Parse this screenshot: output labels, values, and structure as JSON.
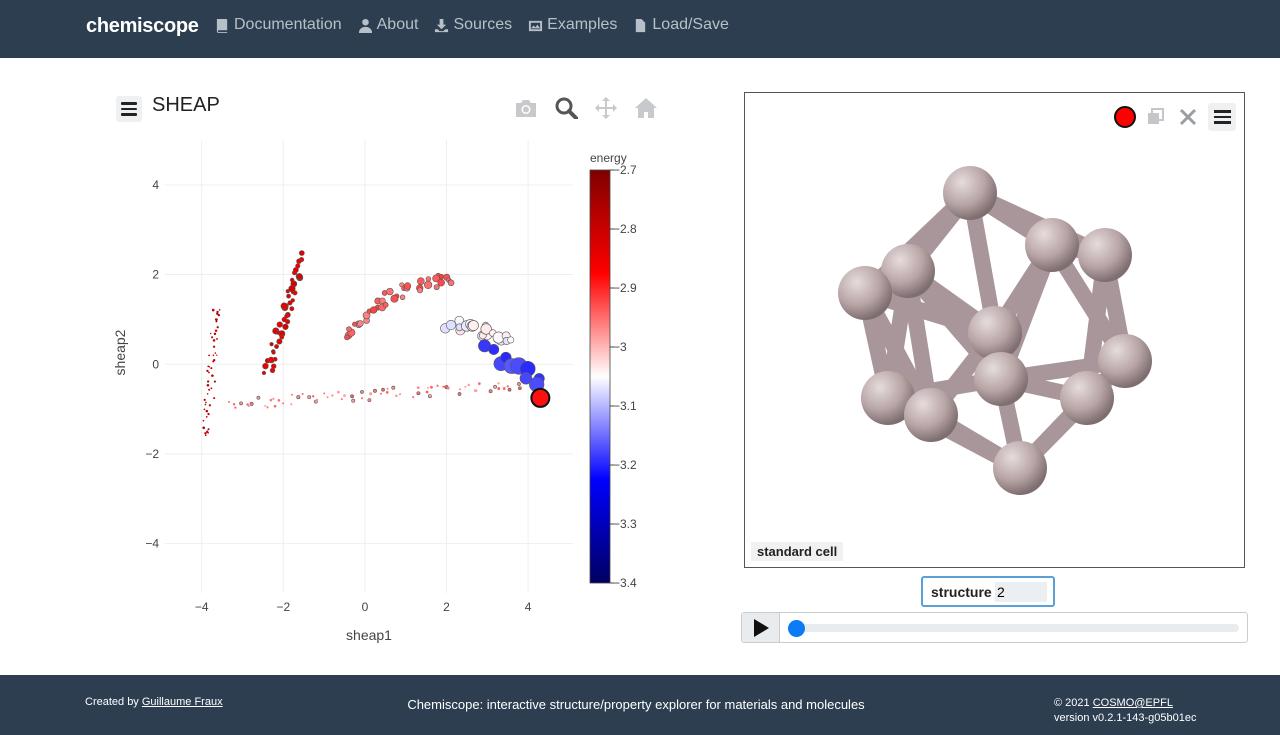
{
  "nav": {
    "brand": "chemiscope",
    "links": [
      {
        "label": "Documentation",
        "icon": "book-icon"
      },
      {
        "label": "About",
        "icon": "user-icon"
      },
      {
        "label": "Sources",
        "icon": "download-icon"
      },
      {
        "label": "Examples",
        "icon": "images-icon"
      },
      {
        "label": "Load/Save",
        "icon": "file-icon"
      }
    ]
  },
  "map": {
    "title": "SHEAP",
    "toolbar": [
      "camera-icon",
      "zoom-icon",
      "pan-icon",
      "home-icon"
    ],
    "selected_marker_color": "#ff1010"
  },
  "chart_data": {
    "type": "scatter",
    "xlabel": "sheap1",
    "ylabel": "sheap2",
    "xlim": [
      -4.9,
      5.1
    ],
    "ylim": [
      -5.1,
      5.0
    ],
    "xticks": [
      -4,
      -2,
      0,
      2,
      4
    ],
    "yticks": [
      -4,
      -2,
      0,
      2,
      4
    ],
    "xtick_labels": [
      "−4",
      "−2",
      "0",
      "2",
      "4"
    ],
    "ytick_labels": [
      "−4",
      "−2",
      "0",
      "2",
      "4"
    ],
    "grid": true,
    "colorbar": {
      "title": "energy",
      "range": [
        -3.4,
        -2.7
      ],
      "ticks": [
        -2.7,
        -2.8,
        -2.9,
        -3.0,
        -3.1,
        -3.2,
        -3.3,
        -3.4
      ],
      "tick_labels": [
        "−2.7",
        "−2.8",
        "−2.9",
        "−3",
        "−3.1",
        "−3.2",
        "−3.3",
        "−3.4"
      ],
      "colormap": [
        "#000060",
        "#0000ff",
        "#ffffff",
        "#ff0000",
        "#800000"
      ]
    },
    "selected_point": {
      "x": 4.3,
      "y": -0.75,
      "energy": -2.9
    },
    "clusters": [
      {
        "name": "far-left band",
        "x_from": -3.9,
        "y_from": -1.6,
        "x_to": -3.6,
        "y_to": 1.3,
        "energy": -2.78,
        "count": 50,
        "size": 1.0
      },
      {
        "name": "left band",
        "x_from": -2.4,
        "y_from": -0.2,
        "x_to": -1.5,
        "y_to": 2.4,
        "energy": -2.84,
        "count": 45,
        "size": 2.5
      },
      {
        "name": "upper arc",
        "x_from": -0.5,
        "y_from": 0.6,
        "x_to": 2.2,
        "y_to": 1.9,
        "energy": -2.94,
        "count": 40,
        "size": 3.0
      },
      {
        "name": "white cluster",
        "x_from": 2.0,
        "y_from": 0.9,
        "x_to": 3.6,
        "y_to": 0.6,
        "energy": -3.05,
        "count": 22,
        "size": 4.5
      },
      {
        "name": "blue tail",
        "x_from": 3.0,
        "y_from": 0.3,
        "x_to": 4.3,
        "y_to": -0.4,
        "energy": -3.18,
        "count": 12,
        "size": 6.5
      },
      {
        "name": "bottom band",
        "x_from": -3.4,
        "y_from": -0.9,
        "x_to": 3.8,
        "y_to": -0.45,
        "energy": -2.96,
        "count": 70,
        "size": 1.3
      }
    ]
  },
  "viewer": {
    "cell_label": "standard cell",
    "tools": [
      "selected-marker",
      "duplicate-icon",
      "close-icon",
      "menu-icon"
    ],
    "atom_color": "#b8a5a6",
    "structure_label": "structure",
    "structure_value": "2"
  },
  "footer": {
    "created_prefix": "Created by",
    "author": "Guillaume Fraux",
    "tagline": "Chemiscope: interactive structure/property explorer for materials and molecules",
    "copyright_prefix": "© 2021",
    "org": "COSMO@EPFL",
    "version": "version v0.2.1-143-g05b01ec"
  }
}
